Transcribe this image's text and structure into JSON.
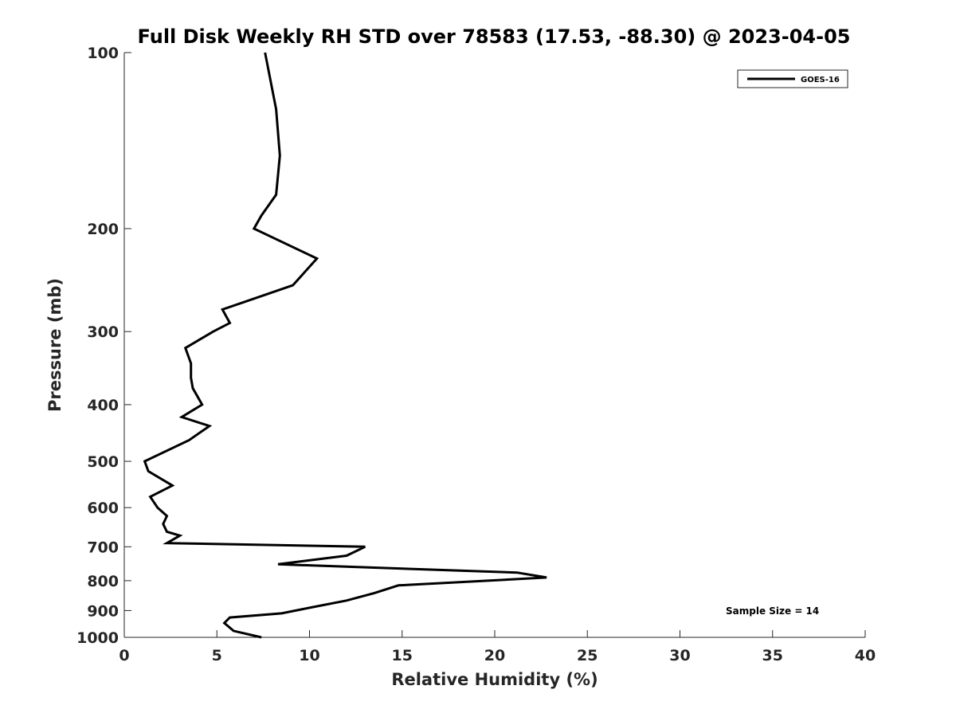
{
  "chart_data": {
    "type": "line",
    "title": "Full Disk Weekly RH STD over 78583 (17.53, -88.30) @ 2023-04-05",
    "xlabel": "Relative Humidity (%)",
    "ylabel": "Pressure (mb)",
    "xlim": [
      0,
      40
    ],
    "ylim": [
      100,
      1000
    ],
    "y_scale": "log",
    "y_inverted": true,
    "x_ticks": [
      0,
      5,
      10,
      15,
      20,
      25,
      30,
      35,
      40
    ],
    "y_ticks": [
      100,
      200,
      300,
      400,
      500,
      600,
      700,
      800,
      900,
      1000
    ],
    "grid": false,
    "legend_position": "top-right",
    "series": [
      {
        "name": "GOES-16",
        "color": "#000000",
        "points": [
          [
            7.6,
            100
          ],
          [
            8.2,
            125
          ],
          [
            8.4,
            150
          ],
          [
            8.2,
            175
          ],
          [
            7.4,
            190
          ],
          [
            7.0,
            200
          ],
          [
            10.4,
            225
          ],
          [
            9.1,
            250
          ],
          [
            5.3,
            275
          ],
          [
            5.7,
            290
          ],
          [
            4.8,
            300
          ],
          [
            3.3,
            320
          ],
          [
            3.6,
            340
          ],
          [
            3.6,
            360
          ],
          [
            3.7,
            375
          ],
          [
            4.2,
            400
          ],
          [
            3.1,
            420
          ],
          [
            4.6,
            435
          ],
          [
            3.5,
            460
          ],
          [
            1.1,
            500
          ],
          [
            1.3,
            520
          ],
          [
            2.6,
            550
          ],
          [
            1.4,
            575
          ],
          [
            1.8,
            600
          ],
          [
            2.3,
            620
          ],
          [
            2.1,
            640
          ],
          [
            2.3,
            660
          ],
          [
            3.0,
            670
          ],
          [
            2.3,
            690
          ],
          [
            13.0,
            700
          ],
          [
            12.0,
            725
          ],
          [
            8.3,
            750
          ],
          [
            21.2,
            775
          ],
          [
            22.8,
            790
          ],
          [
            14.8,
            815
          ],
          [
            13.5,
            840
          ],
          [
            12.0,
            865
          ],
          [
            10.0,
            890
          ],
          [
            8.5,
            910
          ],
          [
            5.7,
            925
          ],
          [
            5.4,
            945
          ],
          [
            5.9,
            975
          ],
          [
            7.4,
            1000
          ]
        ]
      }
    ],
    "annotations": [
      "Sample Size = 14"
    ]
  }
}
